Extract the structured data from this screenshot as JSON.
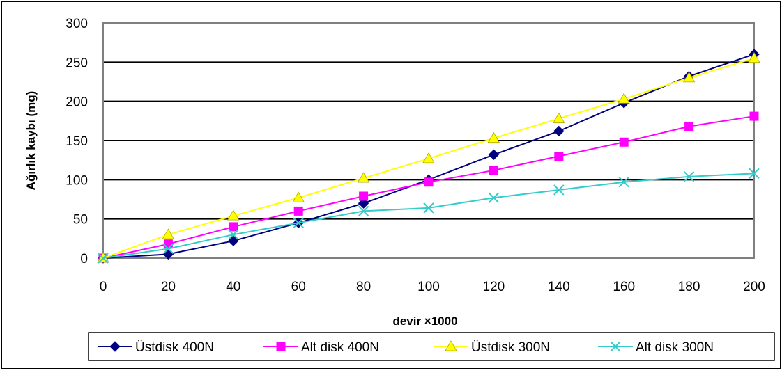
{
  "chart_data": {
    "type": "line",
    "title": "",
    "xlabel": "devir ×1000",
    "ylabel": "Ağırlık kaybı (mg)",
    "x": [
      0,
      20,
      40,
      60,
      80,
      100,
      120,
      140,
      160,
      180,
      200
    ],
    "xlim": [
      0,
      200
    ],
    "ylim": [
      0,
      300
    ],
    "x_ticks": [
      "0",
      "20",
      "40",
      "60",
      "80",
      "100",
      "120",
      "140",
      "160",
      "180",
      "200"
    ],
    "y_ticks": [
      "0",
      "50",
      "100",
      "150",
      "200",
      "250",
      "300"
    ],
    "grid": "horizontal",
    "legend_position": "bottom",
    "series": [
      {
        "name": "Üstdisk 400N",
        "color": "#000080",
        "marker": "diamond",
        "values": [
          0,
          5,
          22,
          45,
          70,
          100,
          132,
          162,
          198,
          232,
          260
        ]
      },
      {
        "name": "Alt disk 400N",
        "color": "#ff00ff",
        "marker": "square",
        "values": [
          0,
          18,
          40,
          60,
          79,
          97,
          112,
          130,
          148,
          168,
          181
        ]
      },
      {
        "name": "Üstdisk 300N",
        "color": "#ffff00",
        "marker": "triangle",
        "values": [
          0,
          30,
          54,
          77,
          102,
          127,
          153,
          178,
          203,
          230,
          255
        ]
      },
      {
        "name": "Alt disk 300N",
        "color": "#33cccc",
        "marker": "x",
        "values": [
          0,
          12,
          30,
          45,
          60,
          64,
          77,
          87,
          97,
          104,
          108
        ]
      }
    ]
  }
}
